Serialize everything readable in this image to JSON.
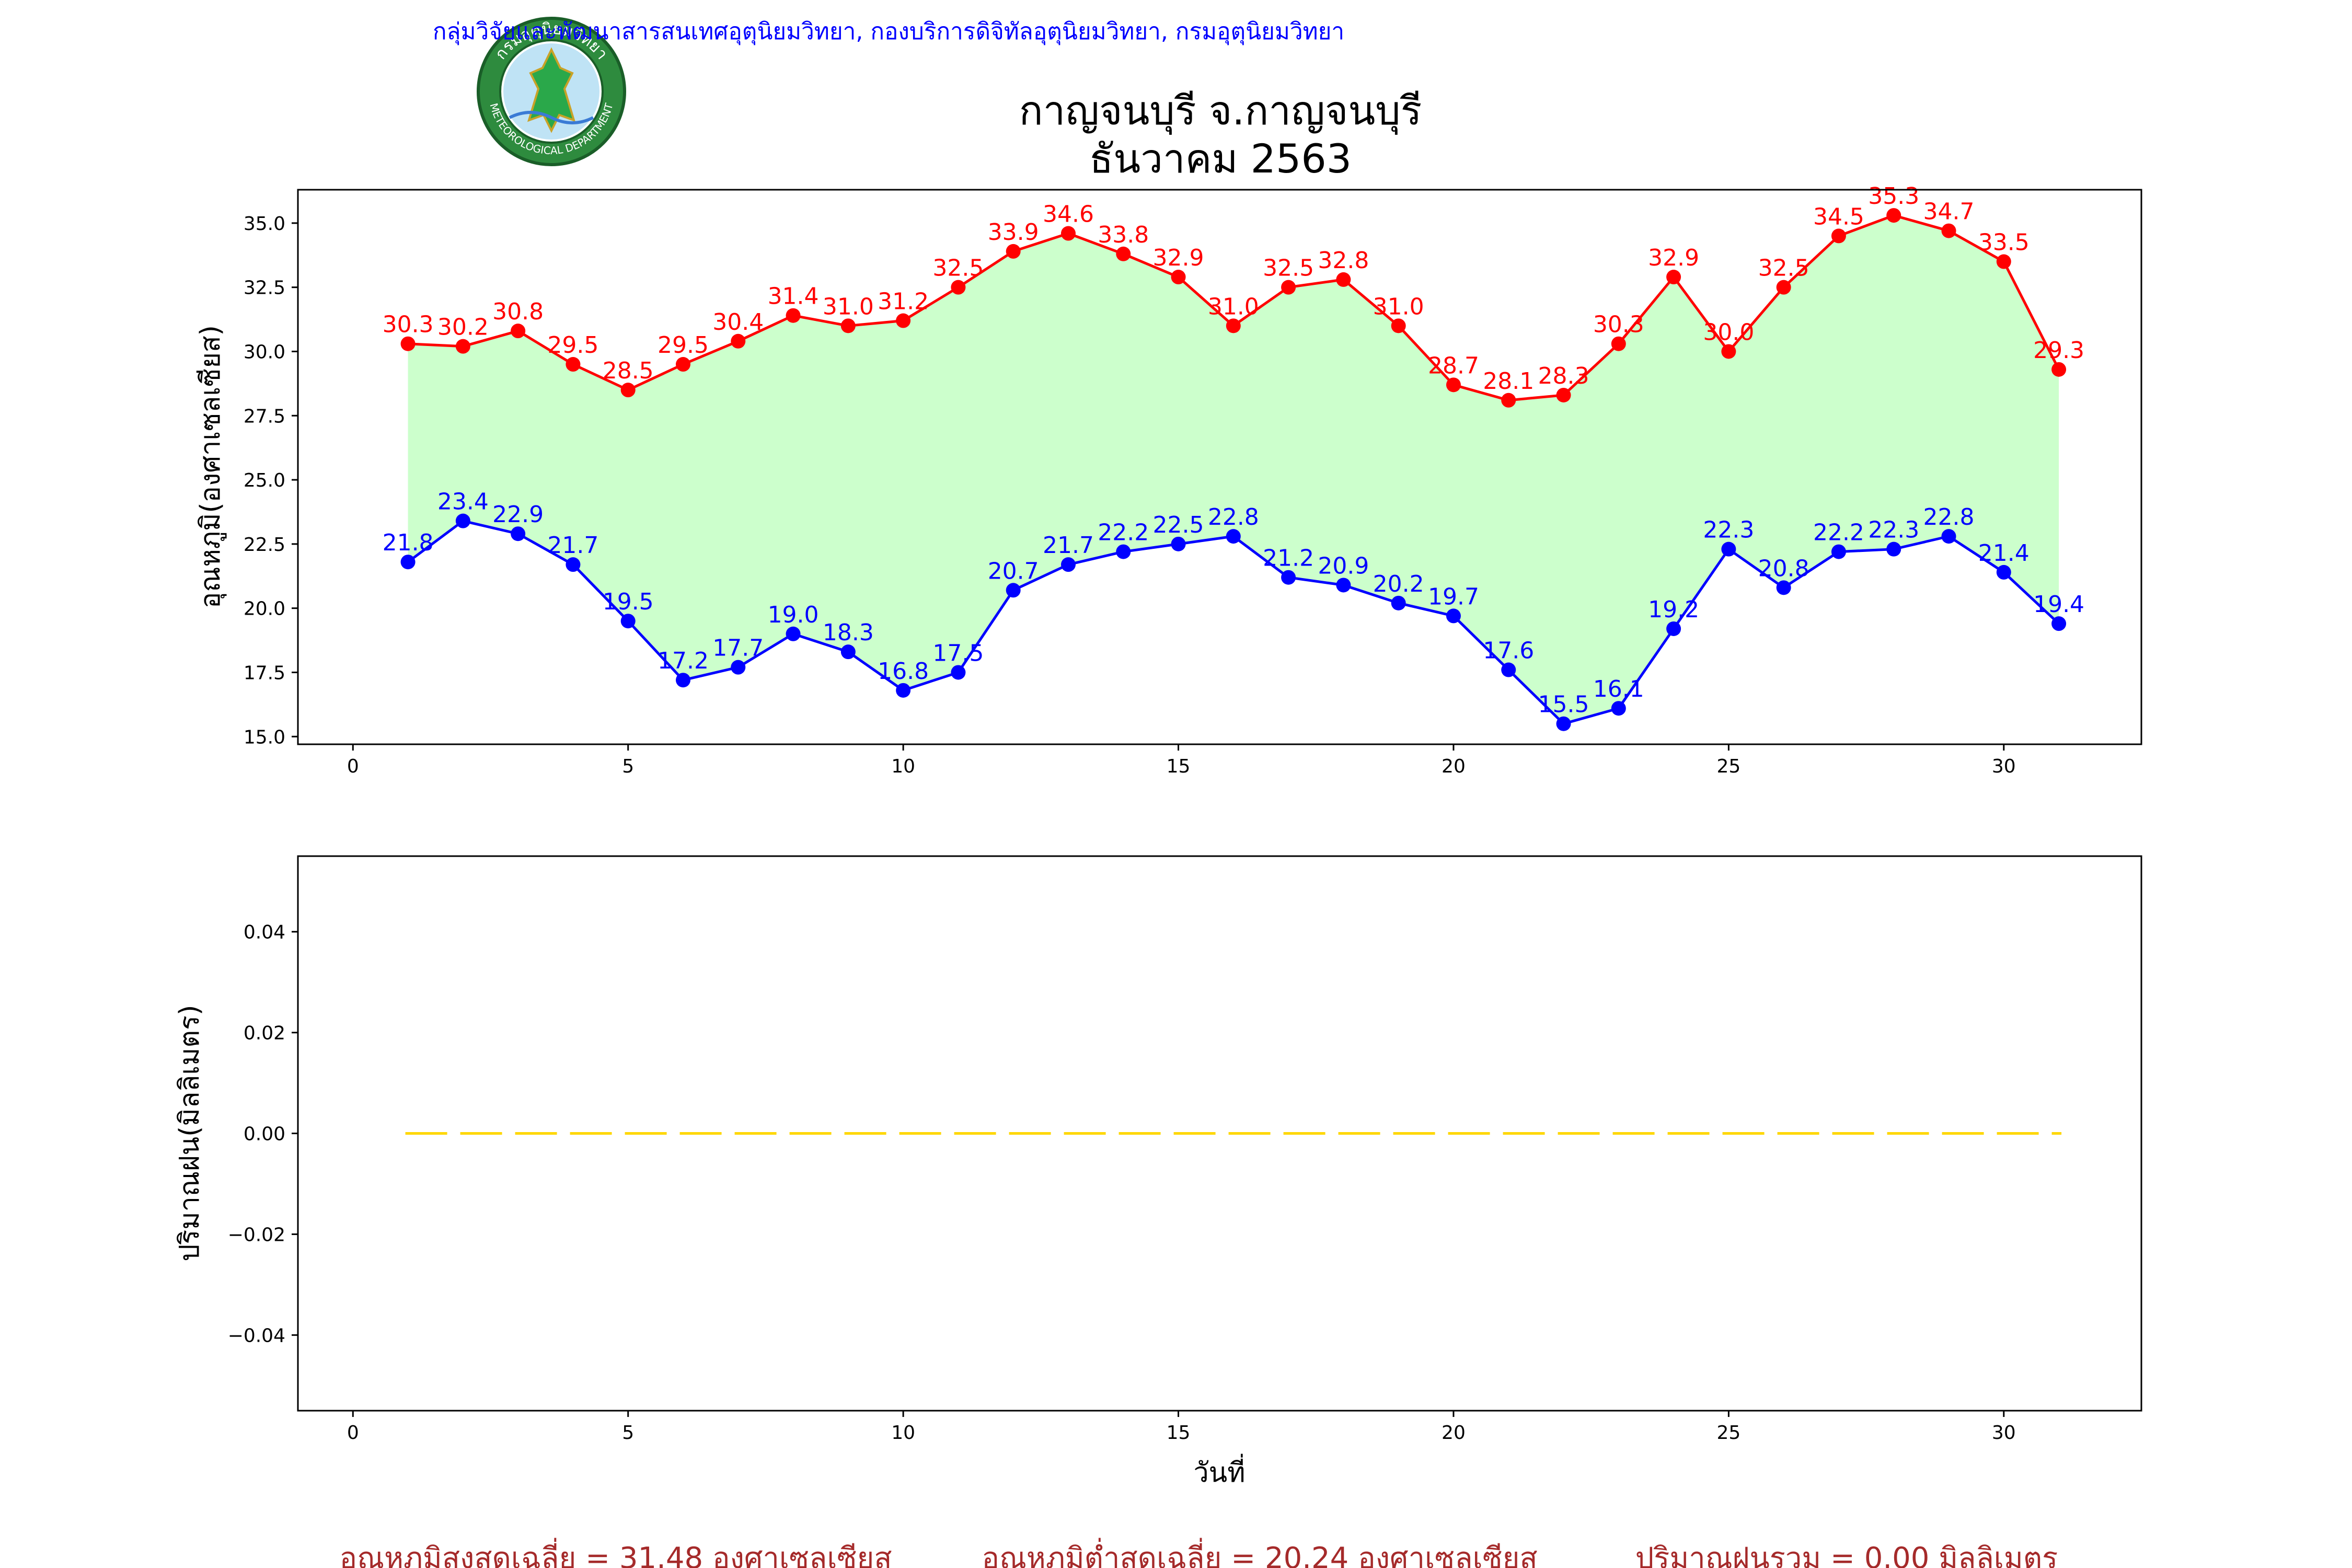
{
  "header": {
    "organization": "กลุ่มวิจัยและพัฒนาสารสนเทศอุตุนิยมวิทยา, กองบริการดิจิทัลอุตุนิยมวิทยา, กรมอุตุนิยมวิทยา",
    "logo_text_top": "กรมอุตุนิยมวิทยา",
    "logo_text_bottom": "METEOROLOGICAL DEPARTMENT",
    "title_line1": "กาญจนบุรี จ.กาญจนบุรี",
    "title_line2": "ธันวาคม 2563"
  },
  "colors": {
    "max_line": "#ff0000",
    "min_line": "#0000ff",
    "fill": "#ccffcc",
    "rain_line": "#ffd700",
    "footer": "#a52a2a",
    "header": "#0000ff"
  },
  "chart_data": [
    {
      "type": "line",
      "x": [
        1,
        2,
        3,
        4,
        5,
        6,
        7,
        8,
        9,
        10,
        11,
        12,
        13,
        14,
        15,
        16,
        17,
        18,
        19,
        20,
        21,
        22,
        23,
        24,
        25,
        26,
        27,
        28,
        29,
        30,
        31
      ],
      "series": [
        {
          "name": "",
          "color": "#ff0000",
          "values": [
            30.3,
            30.2,
            30.8,
            29.5,
            28.5,
            29.5,
            30.4,
            31.4,
            31.0,
            31.2,
            32.5,
            33.9,
            34.6,
            33.8,
            32.9,
            31.0,
            32.5,
            32.8,
            31.0,
            28.7,
            28.1,
            28.3,
            30.3,
            32.9,
            30.0,
            32.5,
            34.5,
            35.3,
            34.7,
            33.5,
            29.3
          ]
        },
        {
          "name": "",
          "color": "#0000ff",
          "values": [
            21.8,
            23.4,
            22.9,
            21.7,
            19.5,
            17.2,
            17.7,
            19.0,
            18.3,
            16.8,
            17.5,
            20.7,
            21.7,
            22.2,
            22.5,
            22.8,
            21.2,
            20.9,
            20.2,
            19.7,
            17.6,
            15.5,
            16.1,
            19.2,
            22.3,
            20.8,
            22.2,
            22.3,
            22.8,
            21.4,
            19.4
          ]
        }
      ],
      "fill_between": true,
      "xlabel": "",
      "ylabel": "อุณหภูมิ(องศาเซลเซียส)",
      "xlim": [
        -1,
        32.5
      ],
      "ylim": [
        14.7,
        36.3
      ],
      "xticks": [
        0,
        5,
        10,
        15,
        20,
        25,
        30
      ],
      "yticks": [
        15.0,
        17.5,
        20.0,
        22.5,
        25.0,
        27.5,
        30.0,
        32.5,
        35.0
      ],
      "grid": false
    },
    {
      "type": "bar",
      "x": [
        1,
        2,
        3,
        4,
        5,
        6,
        7,
        8,
        9,
        10,
        11,
        12,
        13,
        14,
        15,
        16,
        17,
        18,
        19,
        20,
        21,
        22,
        23,
        24,
        25,
        26,
        27,
        28,
        29,
        30,
        31
      ],
      "values": [
        0,
        0,
        0,
        0,
        0,
        0,
        0,
        0,
        0,
        0,
        0,
        0,
        0,
        0,
        0,
        0,
        0,
        0,
        0,
        0,
        0,
        0,
        0,
        0,
        0,
        0,
        0,
        0,
        0,
        0,
        0
      ],
      "xlabel": "วันที่",
      "ylabel": "ปริมาณฝน(มิลลิเมตร)",
      "xlim": [
        -1,
        32.5
      ],
      "ylim": [
        -0.055,
        0.055
      ],
      "xticks": [
        0,
        5,
        10,
        15,
        20,
        25,
        30
      ],
      "yticks": [
        -0.04,
        -0.02,
        0.0,
        0.02,
        0.04
      ],
      "grid": false
    }
  ],
  "footer": {
    "avg_max": "อุณหภูมิสูงสุดเฉลี่ย = 31.48 องศาเซลเซียส",
    "avg_min": "อุณหภูมิต่ำสุดเฉลี่ย = 20.24 องศาเซลเซียส",
    "total_rain": "ปริมาณฝนรวม = 0.00 มิลลิเมตร"
  }
}
